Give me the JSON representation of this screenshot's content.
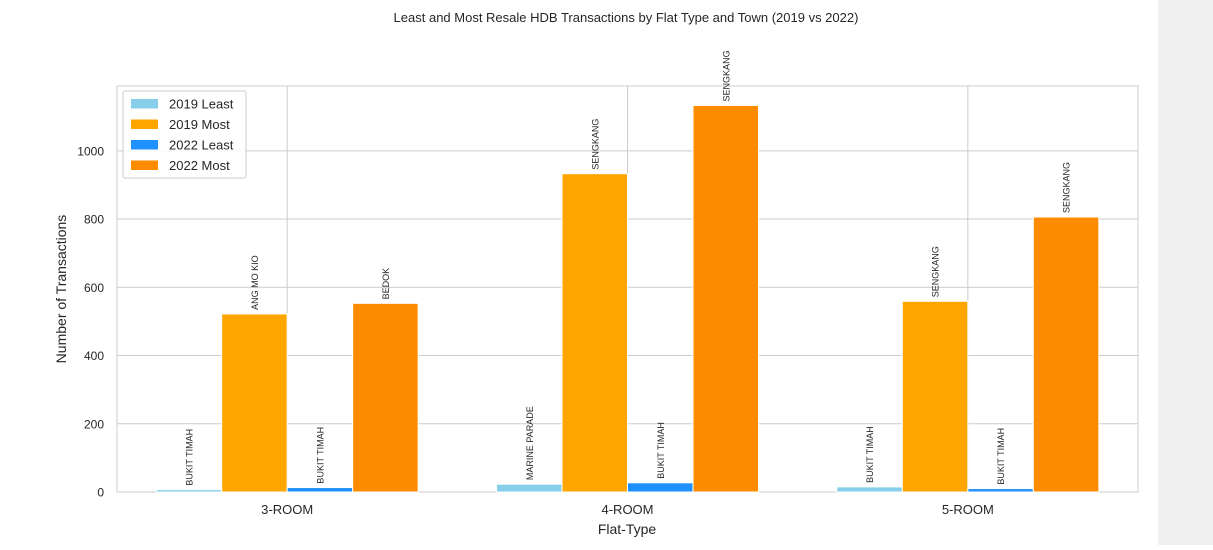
{
  "chart_data": {
    "type": "bar",
    "title": "Least and Most Resale HDB Transactions by Flat Type and Town (2019 vs 2022)",
    "xlabel": "Flat-Type",
    "ylabel": "Number of Transactions",
    "categories": [
      "3-ROOM",
      "4-ROOM",
      "5-ROOM"
    ],
    "ylim": [
      0,
      1190
    ],
    "yticks": [
      0,
      200,
      400,
      600,
      800,
      1000
    ],
    "grid": true,
    "legend_position": "top-left",
    "series": [
      {
        "name": "2019 Least",
        "color": "#87CEEB",
        "values": [
          7,
          23,
          15
        ],
        "towns": [
          "BUKIT TIMAH",
          "MARINE PARADE",
          "BUKIT TIMAH"
        ]
      },
      {
        "name": "2019 Most",
        "color": "#FFA500",
        "values": [
          522,
          933,
          559
        ],
        "towns": [
          "ANG MO KIO",
          "SENGKANG",
          "SENGKANG"
        ]
      },
      {
        "name": "2022 Least",
        "color": "#1E90FF",
        "values": [
          13,
          27,
          10
        ],
        "towns": [
          "BUKIT TIMAH",
          "BUKIT TIMAH",
          "BUKIT TIMAH"
        ]
      },
      {
        "name": "2022 Most",
        "color": "#FF8C00",
        "values": [
          553,
          1133,
          806
        ],
        "towns": [
          "BEDOK",
          "SENGKANG",
          "SENGKANG"
        ]
      }
    ]
  }
}
